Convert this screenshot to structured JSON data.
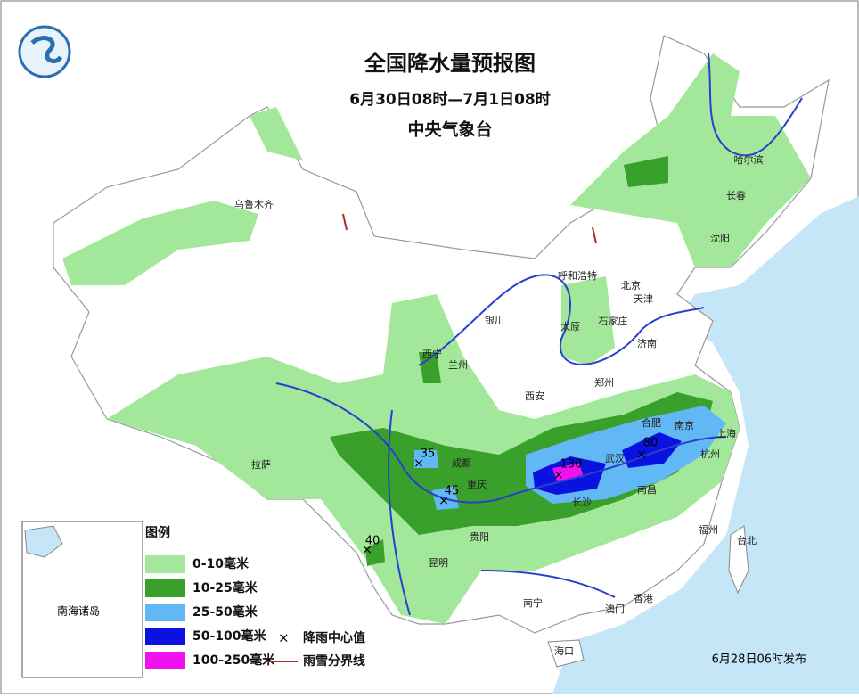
{
  "header": {
    "title": "全国降水量预报图",
    "period": "6月30日08时—7月1日08时",
    "issuer": "中央气象台"
  },
  "cities": [
    {
      "label": "乌鲁木齐"
    },
    {
      "label": "哈尔滨"
    },
    {
      "label": "长春"
    },
    {
      "label": "沈阳"
    },
    {
      "label": "呼和浩特"
    },
    {
      "label": "北京"
    },
    {
      "label": "天津"
    },
    {
      "label": "石家庄"
    },
    {
      "label": "太原"
    },
    {
      "label": "济南"
    },
    {
      "label": "银川"
    },
    {
      "label": "西宁"
    },
    {
      "label": "兰州"
    },
    {
      "label": "郑州"
    },
    {
      "label": "西安"
    },
    {
      "label": "合肥"
    },
    {
      "label": "南京"
    },
    {
      "label": "上海"
    },
    {
      "label": "杭州"
    },
    {
      "label": "武汉"
    },
    {
      "label": "成都"
    },
    {
      "label": "重庆"
    },
    {
      "label": "长沙"
    },
    {
      "label": "南昌"
    },
    {
      "label": "拉萨"
    },
    {
      "label": "贵阳"
    },
    {
      "label": "福州"
    },
    {
      "label": "台北"
    },
    {
      "label": "昆明"
    },
    {
      "label": "南宁"
    },
    {
      "label": "澳门"
    },
    {
      "label": "香港"
    },
    {
      "label": "海口"
    }
  ],
  "rain_centers": [
    {
      "value": 130
    },
    {
      "value": 80
    },
    {
      "value": 35
    },
    {
      "value": 45
    },
    {
      "value": 40
    }
  ],
  "legend": {
    "title": "图例",
    "items": [
      {
        "label": "0-10毫米",
        "color": "#a3e89a"
      },
      {
        "label": "10-25毫米",
        "color": "#3aa02c"
      },
      {
        "label": "25-50毫米",
        "color": "#62b8f5"
      },
      {
        "label": "50-100毫米",
        "color": "#0a12e0"
      },
      {
        "label": "100-250毫米",
        "color": "#f010f0"
      }
    ],
    "center_mark": "降雨中心值",
    "snow_line": "雨雪分界线"
  },
  "inset_label": "南海诸岛",
  "footer": "6月28日06时发布"
}
